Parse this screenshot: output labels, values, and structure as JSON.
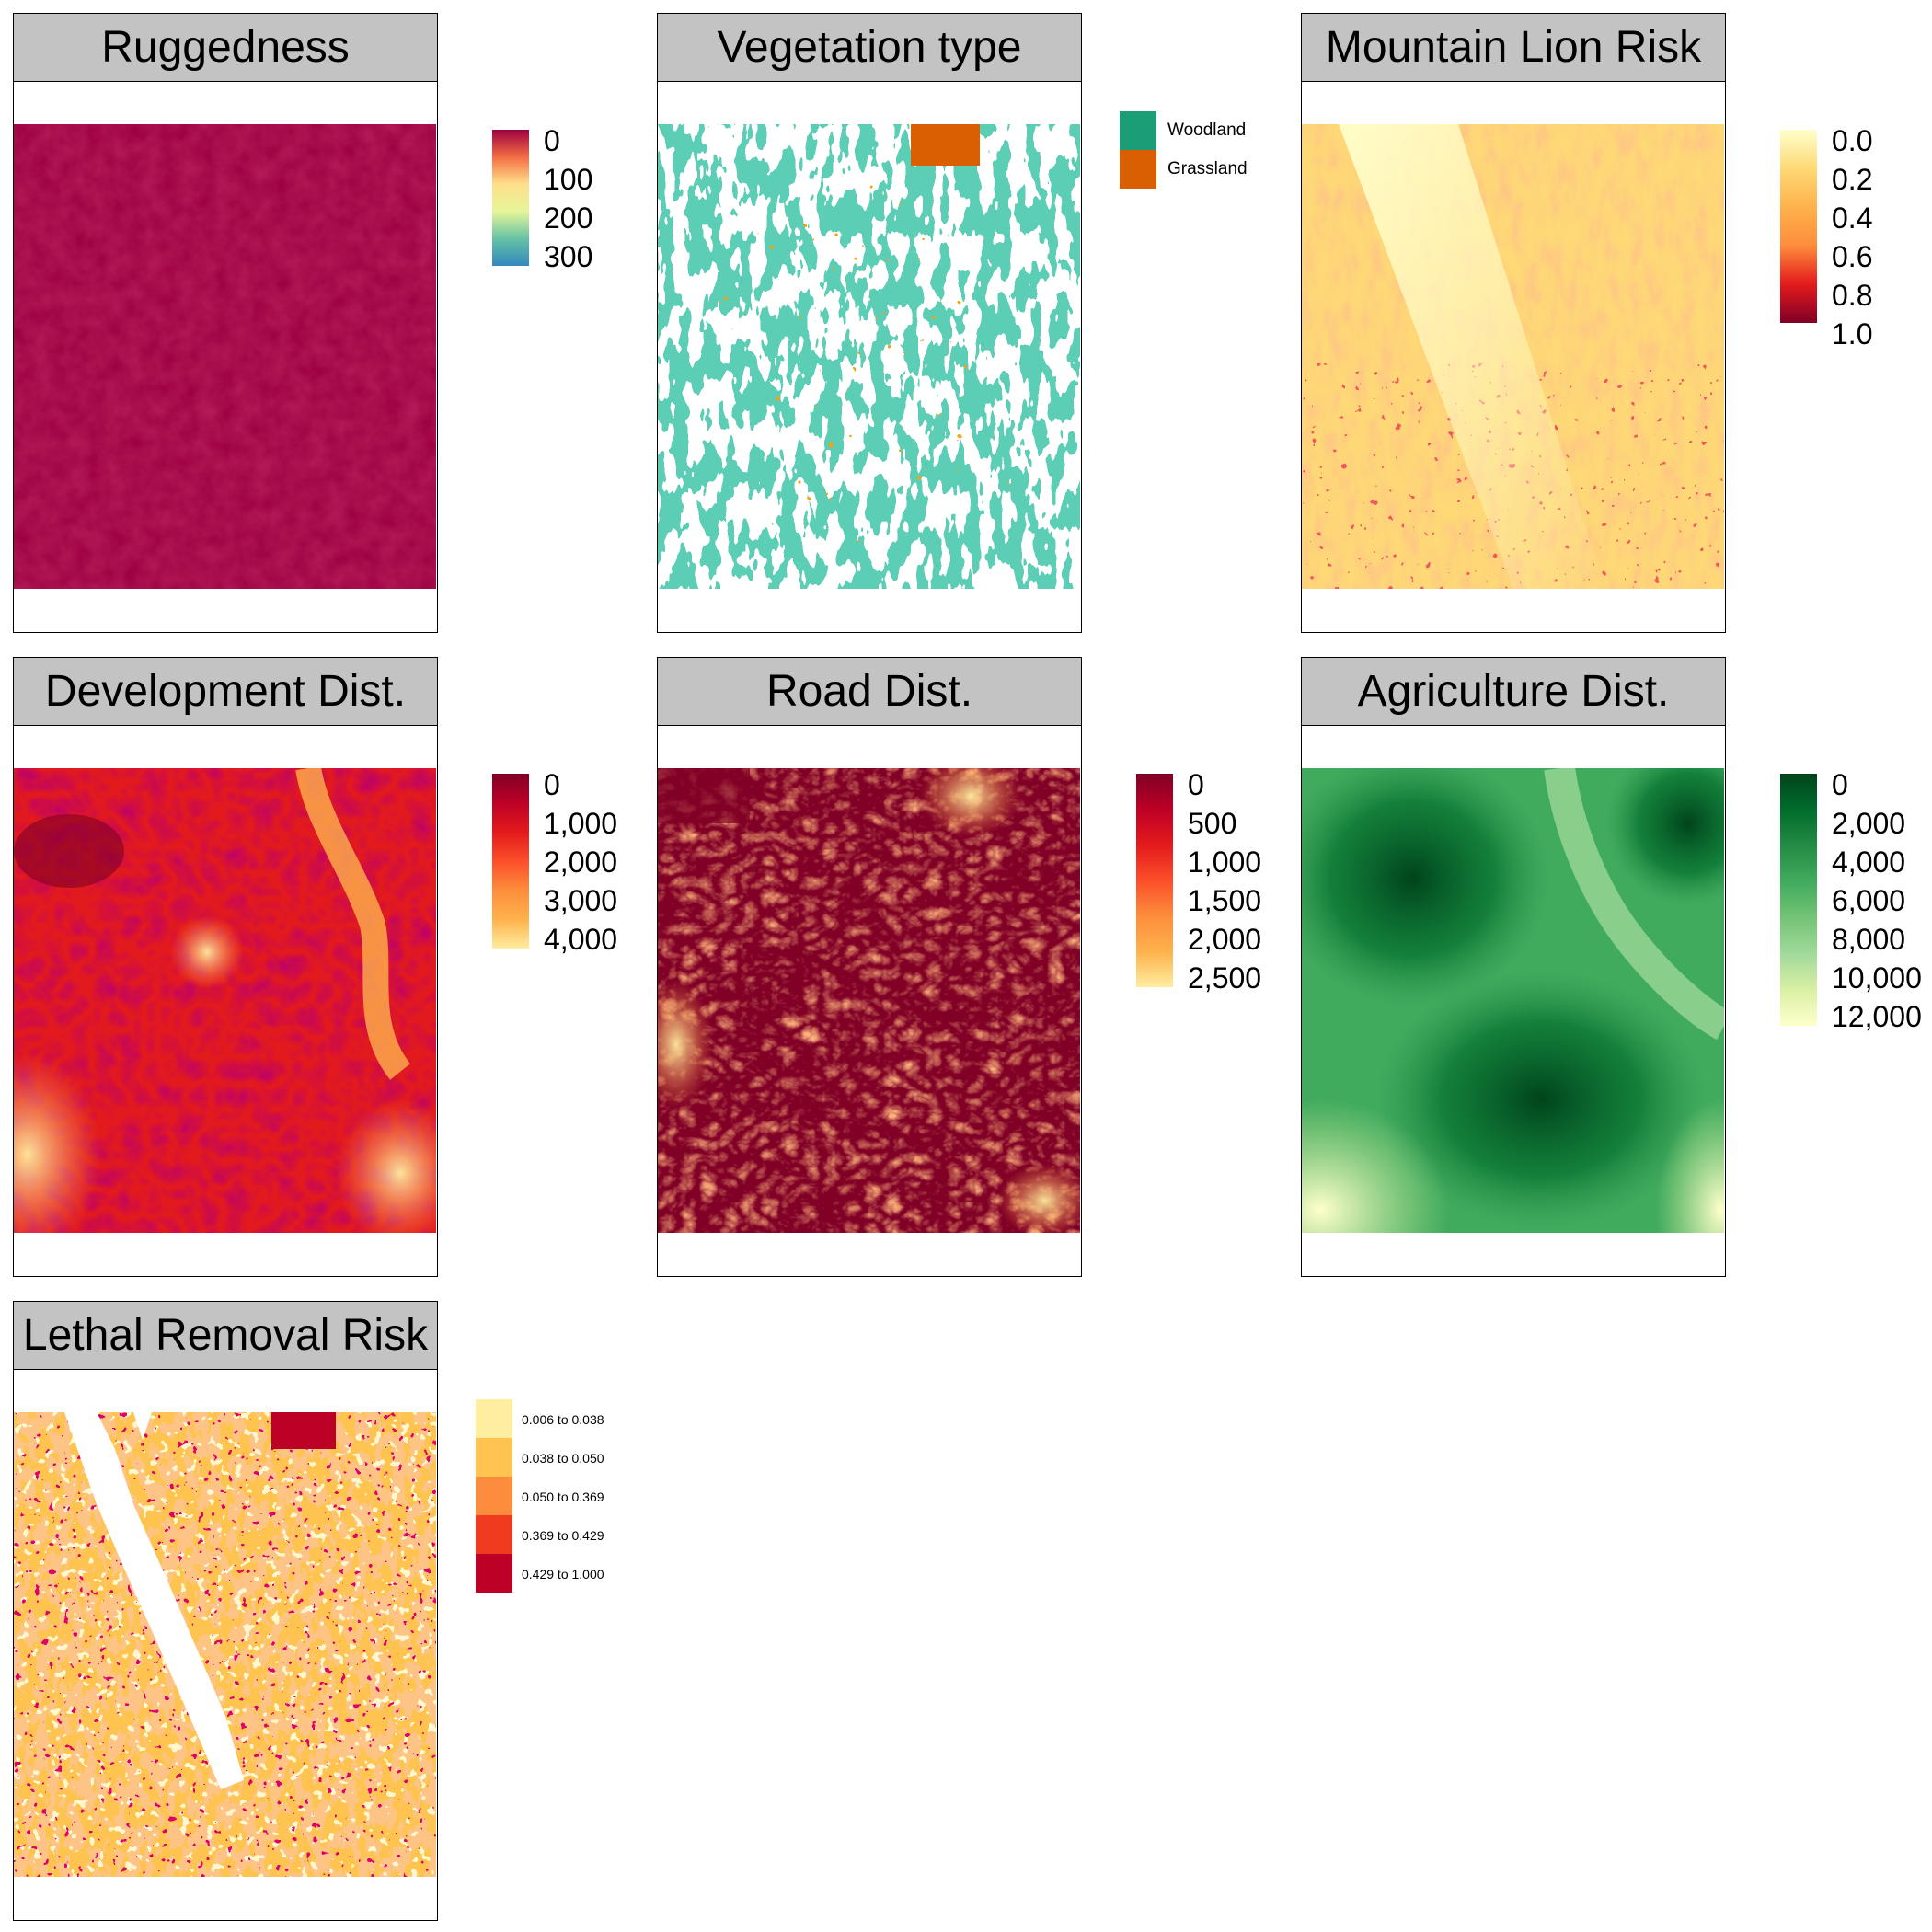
{
  "panels": {
    "ruggedness": {
      "title": "Ruggedness",
      "legend_ticks": [
        "0",
        "100",
        "200",
        "300"
      ],
      "colors": [
        "#9e0142",
        "#f46d43",
        "#fee08b",
        "#e6f598",
        "#66c2a5",
        "#3288bd"
      ]
    },
    "vegetation": {
      "title": "Vegetation type",
      "legend_items": [
        {
          "label": "Woodland",
          "color": "#1b9e77"
        },
        {
          "label": "Grassland",
          "color": "#d95f02"
        }
      ]
    },
    "lion_risk": {
      "title": "Mountain Lion Risk",
      "legend_ticks": [
        "0.0",
        "0.2",
        "0.4",
        "0.6",
        "0.8",
        "1.0"
      ],
      "colors": [
        "#ffffcc",
        "#fed976",
        "#feb24c",
        "#fd8d3c",
        "#e31a1c",
        "#800026"
      ]
    },
    "development": {
      "title": "Development Dist.",
      "legend_ticks": [
        "0",
        "1,000",
        "2,000",
        "3,000",
        "4,000"
      ],
      "colors": [
        "#800026",
        "#bd0026",
        "#e31a1c",
        "#fc4e2a",
        "#fd8d3c",
        "#feb24c",
        "#ffeda0"
      ]
    },
    "road": {
      "title": "Road Dist.",
      "legend_ticks": [
        "0",
        "500",
        "1,000",
        "1,500",
        "2,000",
        "2,500"
      ],
      "colors": [
        "#800026",
        "#bd0026",
        "#e31a1c",
        "#fc4e2a",
        "#fd8d3c",
        "#feb24c",
        "#ffeda0"
      ]
    },
    "agriculture": {
      "title": "Agriculture Dist.",
      "legend_ticks": [
        "0",
        "2,000",
        "4,000",
        "6,000",
        "8,000",
        "10,000",
        "12,000"
      ],
      "colors": [
        "#00441b",
        "#006d2c",
        "#238b45",
        "#41ab5d",
        "#74c476",
        "#a1d99b",
        "#d9f0a3",
        "#ffffcc"
      ]
    },
    "lethal": {
      "title": "Lethal Removal Risk",
      "legend_items": [
        {
          "label": "0.006 to 0.038",
          "color": "#ffeda0"
        },
        {
          "label": "0.038 to 0.050",
          "color": "#fec44f"
        },
        {
          "label": "0.050 to 0.369",
          "color": "#fd8d3c"
        },
        {
          "label": "0.369 to 0.429",
          "color": "#f03b20"
        },
        {
          "label": "0.429 to 1.000",
          "color": "#bd0026"
        }
      ]
    }
  }
}
